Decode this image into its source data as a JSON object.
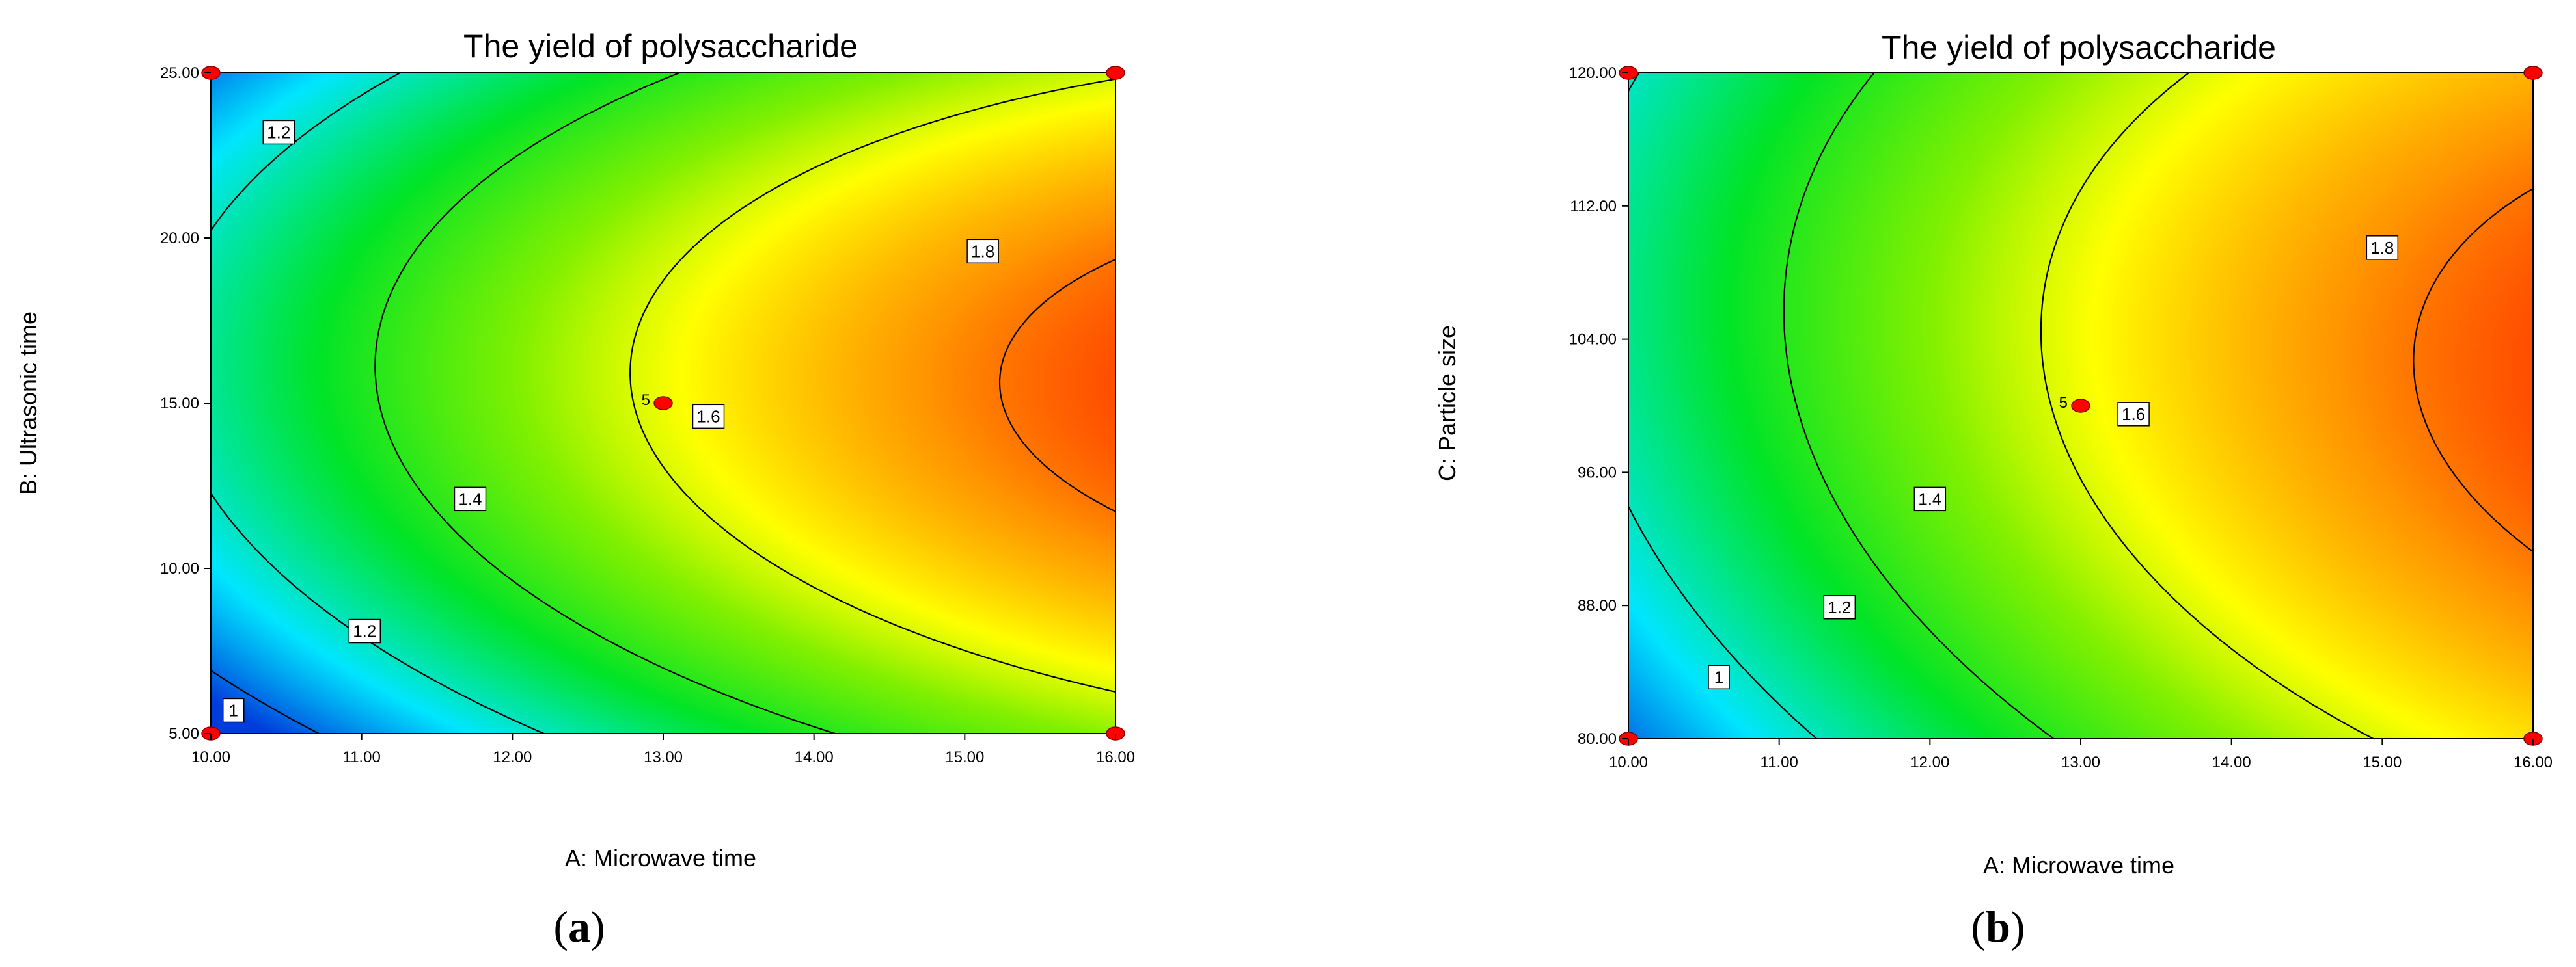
{
  "chart_data": [
    {
      "id": "a",
      "type": "contour",
      "title": "The yield of polysaccharide",
      "xlabel": "A: Microwave time",
      "ylabel": "B: Ultrasonic time",
      "panel_label": "a",
      "xlim": [
        10,
        16
      ],
      "ylim": [
        5,
        25
      ],
      "xticks": [
        "10.00",
        "11.00",
        "12.00",
        "13.00",
        "14.00",
        "15.00",
        "16.00"
      ],
      "yticks": [
        "5.00",
        "10.00",
        "15.00",
        "20.00",
        "25.00"
      ],
      "model": {
        "x0": 13,
        "y0": 15,
        "hx": 3,
        "hy": 10,
        "c": 1.62,
        "bx": 0.3,
        "by": 0.05,
        "bxx": -0.08,
        "byy": -0.28,
        "bxy": -0.02
      },
      "color_range": [
        0.95,
        1.9
      ],
      "contour_levels": [
        {
          "level": 1.0,
          "label": "1",
          "label_at": [
            10.15,
            5.7
          ]
        },
        {
          "level": 1.2,
          "label": "1.2",
          "label_at": [
            10.45,
            23.2
          ]
        },
        {
          "level": 1.2,
          "label": "1.2",
          "label_at": [
            11.02,
            8.1
          ]
        },
        {
          "level": 1.4,
          "label": "1.4",
          "label_at": [
            11.72,
            12.1
          ]
        },
        {
          "level": 1.6,
          "label": "1.6",
          "label_at": [
            13.3,
            14.6
          ]
        },
        {
          "level": 1.8,
          "label": "1.8",
          "label_at": [
            15.12,
            19.6
          ]
        }
      ],
      "design_points": [
        [
          10,
          5
        ],
        [
          10,
          25
        ],
        [
          16,
          5
        ],
        [
          16,
          25
        ],
        [
          13,
          15
        ]
      ],
      "center_point": {
        "x": 13,
        "y": 15,
        "label": "5"
      }
    },
    {
      "id": "b",
      "type": "contour",
      "title": "The yield of polysaccharide",
      "xlabel": "A: Microwave time",
      "ylabel": "C: Particle size",
      "panel_label": "b",
      "xlim": [
        10,
        16
      ],
      "ylim": [
        80,
        120
      ],
      "xticks": [
        "10.00",
        "11.00",
        "12.00",
        "13.00",
        "14.00",
        "15.00",
        "16.00"
      ],
      "yticks": [
        "80.00",
        "88.00",
        "96.00",
        "104.00",
        "112.00",
        "120.00"
      ],
      "model": {
        "x0": 13,
        "y0": 100,
        "hx": 3,
        "hy": 20,
        "c": 1.62,
        "bx": 0.3,
        "by": 0.06,
        "bxx": -0.08,
        "byy": -0.14,
        "bxy": -0.03
      },
      "color_range": [
        0.95,
        1.9
      ],
      "contour_levels": [
        {
          "level": 1.0,
          "label": "1",
          "label_at": [
            10.6,
            83.7
          ]
        },
        {
          "level": 1.2,
          "label": "1.2",
          "label_at": [
            11.4,
            87.9
          ]
        },
        {
          "level": 1.4,
          "label": "1.4",
          "label_at": [
            12.0,
            94.4
          ]
        },
        {
          "level": 1.6,
          "label": "1.6",
          "label_at": [
            13.35,
            99.5
          ]
        },
        {
          "level": 1.8,
          "label": "1.8",
          "label_at": [
            15.0,
            109.5
          ]
        }
      ],
      "design_points": [
        [
          10,
          80
        ],
        [
          10,
          120
        ],
        [
          16,
          80
        ],
        [
          16,
          120
        ],
        [
          13,
          100
        ]
      ],
      "center_point": {
        "x": 13,
        "y": 100,
        "label": "5"
      }
    }
  ]
}
